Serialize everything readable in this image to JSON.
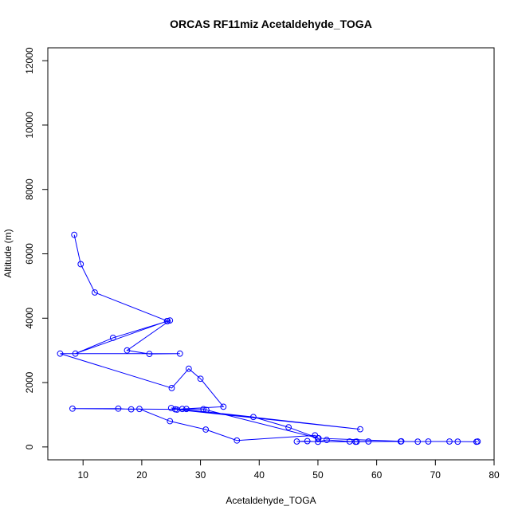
{
  "chart_data": {
    "type": "line",
    "title": "ORCAS RF11miz Acetaldehyde_TOGA",
    "xlabel": "Acetaldehyde_TOGA",
    "ylabel": "Altitude (m)",
    "xlim": [
      4,
      80
    ],
    "ylim": [
      -400,
      12400
    ],
    "x_ticks": [
      10,
      20,
      30,
      40,
      50,
      60,
      70,
      80
    ],
    "y_ticks": [
      0,
      2000,
      4000,
      6000,
      8000,
      10000,
      12000
    ],
    "grid": false,
    "marker": "open-circle",
    "color": "#0000ff",
    "series": [
      {
        "x": [
          77.2,
          77.0,
          73.8,
          72.4,
          68.8,
          67.0,
          64.1,
          58.6,
          56.6,
          55.4,
          51.5,
          50.0,
          48.2,
          46.4,
          56.4,
          64.2,
          50.0,
          49.5,
          36.2,
          30.9,
          24.8,
          19.6,
          18.2,
          16.0,
          8.2,
          25.7,
          27.6,
          30.5,
          31.0,
          50.1,
          45.0,
          39.0,
          25.0,
          57.2,
          26.0,
          26.9,
          33.9,
          30.0,
          28.0,
          25.1,
          6.1,
          26.5,
          21.3,
          17.5,
          24.8,
          24.3,
          8.7,
          15.1,
          24.4,
          12.0,
          9.6,
          8.5
        ],
        "y": [
          170,
          160,
          165,
          170,
          170,
          165,
          170,
          170,
          165,
          170,
          220,
          160,
          180,
          170,
          160,
          175,
          270,
          360,
          200,
          540,
          800,
          1180,
          1170,
          1190,
          1190,
          1170,
          1180,
          1175,
          1150,
          270,
          610,
          930,
          1210,
          550,
          1160,
          1180,
          1250,
          2120,
          2430,
          1830,
          2900,
          2900,
          2890,
          3000,
          3930,
          3910,
          2900,
          3390,
          3910,
          4800,
          5680,
          6590
        ]
      }
    ]
  }
}
